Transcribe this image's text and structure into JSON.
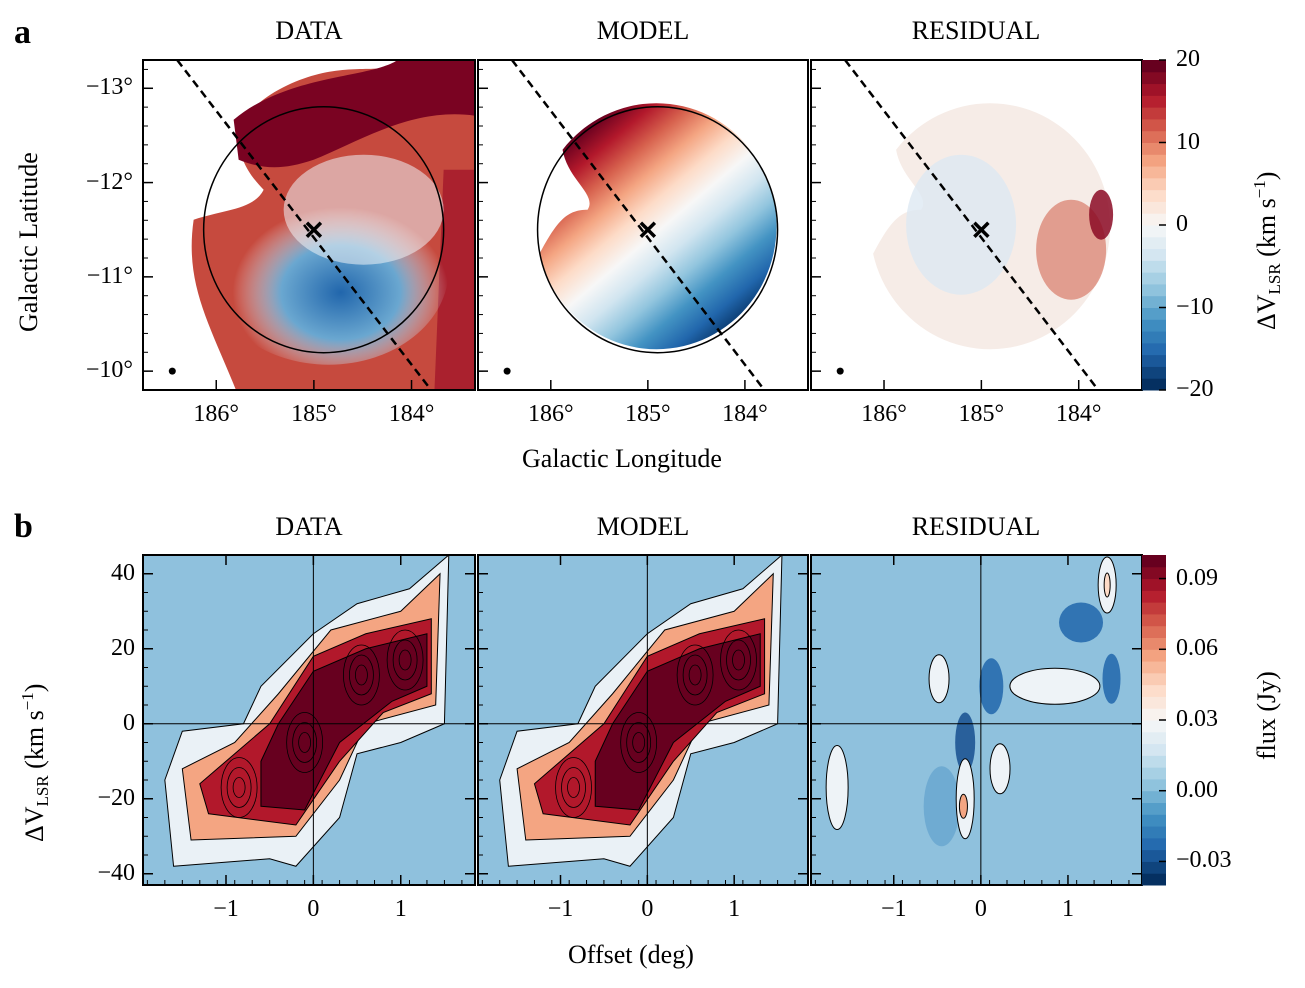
{
  "figure": {
    "panel_letters": [
      "a",
      "b"
    ],
    "panel_titles": [
      "DATA",
      "MODEL",
      "RESIDUAL"
    ]
  },
  "chart_data": [
    {
      "type": "heatmap",
      "id": "row-a",
      "panel_letter": "a",
      "panels": [
        "DATA",
        "MODEL",
        "RESIDUAL"
      ],
      "xlabel": "Galactic Longitude",
      "ylabel": "Galactic Latitude",
      "xticks": [
        186,
        185,
        184
      ],
      "xtick_labels": [
        "186°",
        "185°",
        "184°"
      ],
      "xlim": [
        186.75,
        183.35
      ],
      "yticks": [
        -13,
        -12,
        -11,
        -10
      ],
      "ytick_labels": [
        "−13°",
        "−12°",
        "−11°",
        "−10°"
      ],
      "ylim": [
        -13.3,
        -9.8
      ],
      "center_marker": {
        "l": 185.0,
        "b": -11.5,
        "symbol": "x"
      },
      "ellipse": {
        "center_l": 184.9,
        "center_b": -11.5,
        "semi_axis_l_deg": 1.2,
        "semi_axis_b_deg": 1.3
      },
      "dashed_line": {
        "from": [
          186.4,
          -13.3
        ],
        "to": [
          183.8,
          -9.8
        ]
      },
      "beam_marker": {
        "l": 186.45,
        "b": -10.0
      },
      "colorbar": {
        "label": "ΔV_LSR (km s^-1)",
        "label_main": "ΔV",
        "label_sub": "LSR",
        "label_unit": "(km s",
        "label_sup": "−1",
        "label_close": ")",
        "range": [
          -20,
          20
        ],
        "ticks": [
          20,
          10,
          0,
          -10,
          -20
        ],
        "tick_labels": [
          "20",
          "10",
          "0",
          "−10",
          "−20"
        ],
        "cmap": "RdBu_r",
        "colors": [
          "#053061",
          "#2166ac",
          "#4393c3",
          "#92c5de",
          "#d1e5f0",
          "#f7f7f7",
          "#fddbc7",
          "#f4a582",
          "#d6604d",
          "#b2182b",
          "#67001f"
        ]
      }
    },
    {
      "type": "heatmap",
      "id": "row-b",
      "panel_letter": "b",
      "panels": [
        "DATA",
        "MODEL",
        "RESIDUAL"
      ],
      "xlabel": "Offset (deg)",
      "ylabel": "ΔV_LSR (km s^-1)",
      "xticks": [
        -1,
        0,
        1
      ],
      "xtick_labels": [
        "−1",
        "0",
        "1"
      ],
      "xlim": [
        -1.95,
        1.85
      ],
      "yticks": [
        40,
        20,
        0,
        -20,
        -40
      ],
      "ytick_labels": [
        "40",
        "20",
        "0",
        "−20",
        "−40"
      ],
      "ylim": [
        -43,
        45
      ],
      "background_color": "#8fc1dd",
      "colorbar": {
        "label": "flux (Jy)",
        "range": [
          -0.04,
          0.1
        ],
        "ticks": [
          0.09,
          0.06,
          0.03,
          0.0,
          -0.03
        ],
        "tick_labels": [
          "0.09",
          "0.06",
          "0.03",
          "0.00",
          "−0.03"
        ],
        "cmap": "RdBu_r",
        "colors": [
          "#053061",
          "#2166ac",
          "#4393c3",
          "#92c5de",
          "#d1e5f0",
          "#f7f7f7",
          "#fddbc7",
          "#f4a582",
          "#d6604d",
          "#b2182b",
          "#67001f"
        ]
      },
      "pv_peaks": [
        {
          "offset": -0.85,
          "velocity": -17
        },
        {
          "offset": -0.1,
          "velocity": -5
        },
        {
          "offset": 0.55,
          "velocity": 13
        },
        {
          "offset": 1.05,
          "velocity": 17
        }
      ]
    }
  ]
}
